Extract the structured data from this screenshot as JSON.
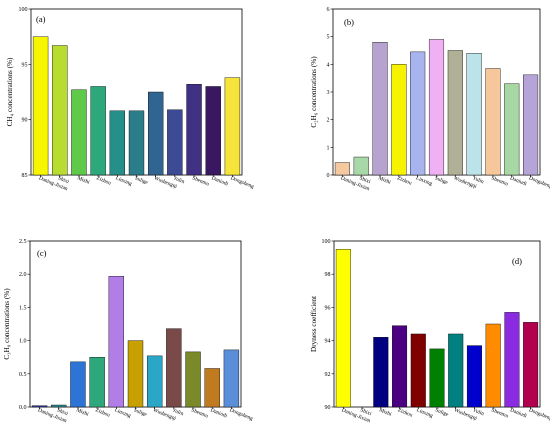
{
  "categories": [
    "Daniug-Jixian",
    "Shixi",
    "Mizhi",
    "Zizhou",
    "Linxing",
    "Sulige",
    "Wushengqi",
    "Yulin",
    "Shenmu",
    "Daniudi",
    "Dongsheng"
  ],
  "colors": {
    "ch4": [
      "#f6f600",
      "#b9dc31",
      "#5fc94a",
      "#2ca87a",
      "#278f8a",
      "#2b7d8a",
      "#2f6590",
      "#3c4b93",
      "#403185",
      "#3a1761",
      "#f7e43a"
    ],
    "c2h6": [
      "#f6c8a0",
      "#a9d8a8",
      "#b6a3cf",
      "#f6f200",
      "#a8b4ee",
      "#f0b0f4",
      "#b0b097",
      "#bde3ea",
      "#f6c79b",
      "#a7d7a3",
      "#b6a3d8"
    ],
    "c3h8": [
      "#2b3aa8",
      "#2a8a8a",
      "#2e74d6",
      "#2ea87a",
      "#b07ee6",
      "#c8a000",
      "#2aa6c6",
      "#7a4a48",
      "#7a8a2a",
      "#c07a20",
      "#5a8ed8"
    ],
    "dryness": [
      "#ffff00",
      "#ffffff",
      "#000080",
      "#4b0082",
      "#800000",
      "#008000",
      "#008080",
      "#0000cd",
      "#ff8c00",
      "#8a2be2",
      "#b0004e"
    ]
  },
  "chart_data": [
    {
      "type": "bar",
      "panel": "(a)",
      "categories": [
        "Daniug-Jixian",
        "Shixi",
        "Mizhi",
        "Zizhou",
        "Linxing",
        "Sulige",
        "Wushengqi",
        "Yulin",
        "Shenmu",
        "Daniudi",
        "Dongsheng"
      ],
      "values": [
        97.5,
        96.7,
        92.7,
        93.0,
        90.8,
        90.8,
        92.5,
        90.9,
        93.2,
        93.0,
        93.8
      ],
      "ylabel": "CH₄ concentrations (%)",
      "ylim": [
        85,
        100
      ],
      "yticks": [
        "85",
        "90",
        "95",
        "100"
      ],
      "ytick_values": [
        85,
        90,
        95,
        100
      ]
    },
    {
      "type": "bar",
      "panel": "(b)",
      "categories": [
        "Daniug-Jixian",
        "Shixi",
        "Mizhi",
        "Zizhou",
        "Linxing",
        "Sulige",
        "Wushengqi",
        "Yulin",
        "Shenmu",
        "Daniudi",
        "Dongsheng"
      ],
      "values": [
        0.45,
        0.65,
        4.8,
        4.0,
        4.45,
        4.9,
        4.5,
        4.4,
        3.85,
        3.3,
        3.62
      ],
      "ylabel": "C₂H₆ concentrations (%)",
      "ylim": [
        0,
        6
      ],
      "yticks": [
        "0",
        "1",
        "2",
        "3",
        "4",
        "5",
        "6"
      ],
      "ytick_values": [
        0,
        1,
        2,
        3,
        4,
        5,
        6
      ]
    },
    {
      "type": "bar",
      "panel": "(c)",
      "categories": [
        "Daniug-Jixian",
        "Shixi",
        "Mizhi",
        "Zizhou",
        "Linxing",
        "Sulige",
        "Wushengqi",
        "Yulin",
        "Shenmu",
        "Daniudi",
        "Dongsheng"
      ],
      "values": [
        0.02,
        0.03,
        0.68,
        0.75,
        1.97,
        1.0,
        0.77,
        1.18,
        0.83,
        0.58,
        0.86
      ],
      "ylabel": "C₃H₈ concentrations (%)",
      "ylim": [
        0,
        2.5
      ],
      "yticks": [
        "0.0",
        "0.5",
        "1.0",
        "1.5",
        "2.0",
        "2.5"
      ],
      "ytick_values": [
        0,
        0.5,
        1.0,
        1.5,
        2.0,
        2.5
      ]
    },
    {
      "type": "bar",
      "panel": "(d)",
      "categories": [
        "Daniug-Jixian",
        "Shixi",
        "Mizhi",
        "Zizhou",
        "Linxing",
        "Sulige",
        "Wushengqi",
        "Yulin",
        "Shenmu",
        "Daniudi",
        "Dongsheng"
      ],
      "values": [
        99.5,
        90.0,
        94.2,
        94.9,
        94.4,
        93.5,
        94.4,
        93.7,
        95.0,
        95.7,
        95.1
      ],
      "ylabel": "Dryness coefficient",
      "ylim": [
        90,
        100
      ],
      "yticks": [
        "90",
        "92",
        "94",
        "96",
        "98",
        "100"
      ],
      "ytick_values": [
        90,
        92,
        94,
        96,
        98,
        100
      ]
    }
  ]
}
